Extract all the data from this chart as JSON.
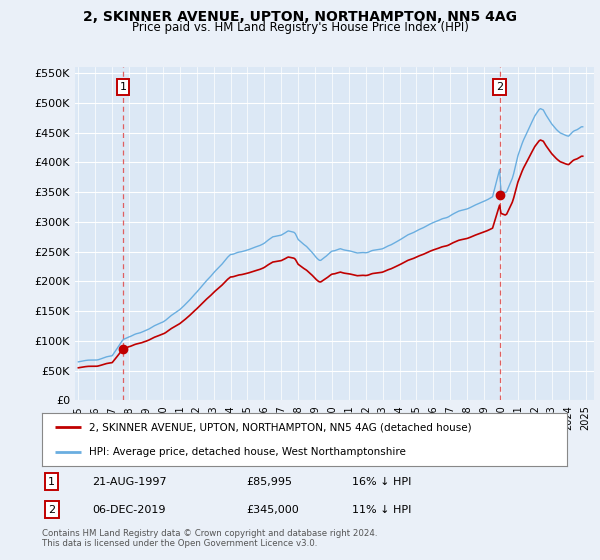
{
  "title": "2, SKINNER AVENUE, UPTON, NORTHAMPTON, NN5 4AG",
  "subtitle": "Price paid vs. HM Land Registry's House Price Index (HPI)",
  "background_color": "#eaf0f8",
  "plot_bg_color": "#dce8f5",
  "legend_line1": "2, SKINNER AVENUE, UPTON, NORTHAMPTON, NN5 4AG (detached house)",
  "legend_line2": "HPI: Average price, detached house, West Northamptonshire",
  "footer": "Contains HM Land Registry data © Crown copyright and database right 2024.\nThis data is licensed under the Open Government Licence v3.0.",
  "sale1_date": "21-AUG-1997",
  "sale1_price": "£85,995",
  "sale1_hpi": "16% ↓ HPI",
  "sale1_x": 1997.64,
  "sale1_y": 85995,
  "sale2_date": "06-DEC-2019",
  "sale2_price": "£345,000",
  "sale2_hpi": "11% ↓ HPI",
  "sale2_x": 2019.92,
  "sale2_y": 345000,
  "hpi_color": "#6aaee0",
  "sale_color": "#c00000",
  "dashed_color": "#e05050",
  "ylim_min": 0,
  "ylim_max": 560000,
  "yticks": [
    0,
    50000,
    100000,
    150000,
    200000,
    250000,
    300000,
    350000,
    400000,
    450000,
    500000,
    550000
  ],
  "xlim_min": 1994.8,
  "xlim_max": 2025.5
}
